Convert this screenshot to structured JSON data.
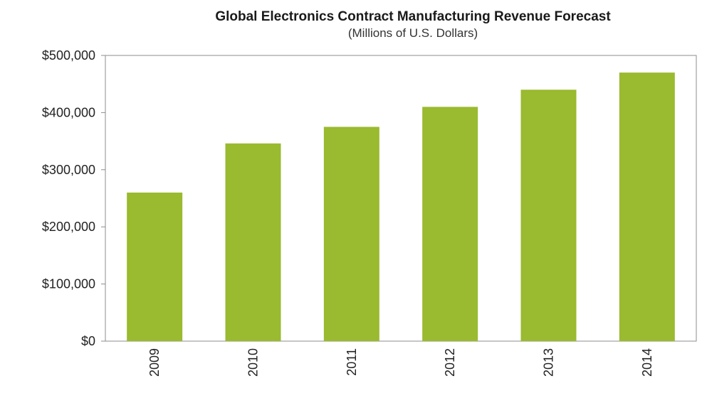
{
  "chart_data": {
    "type": "bar",
    "title": "Global Electronics Contract Manufacturing Revenue Forecast",
    "subtitle": "(Millions of U.S. Dollars)",
    "categories": [
      "2009",
      "2010",
      "2011",
      "2012",
      "2013",
      "2014"
    ],
    "values": [
      260000,
      346000,
      375000,
      410000,
      440000,
      470000
    ],
    "ylim": [
      0,
      500000
    ],
    "yticks": [
      0,
      100000,
      200000,
      300000,
      400000,
      500000
    ],
    "ytick_labels": [
      "$0",
      "$100,000",
      "$200,000",
      "$300,000",
      "$400,000",
      "$500,000"
    ],
    "grid": false,
    "legend": "none",
    "bar_color": "#9aba2f",
    "axis_color": "#8c8c8c"
  }
}
